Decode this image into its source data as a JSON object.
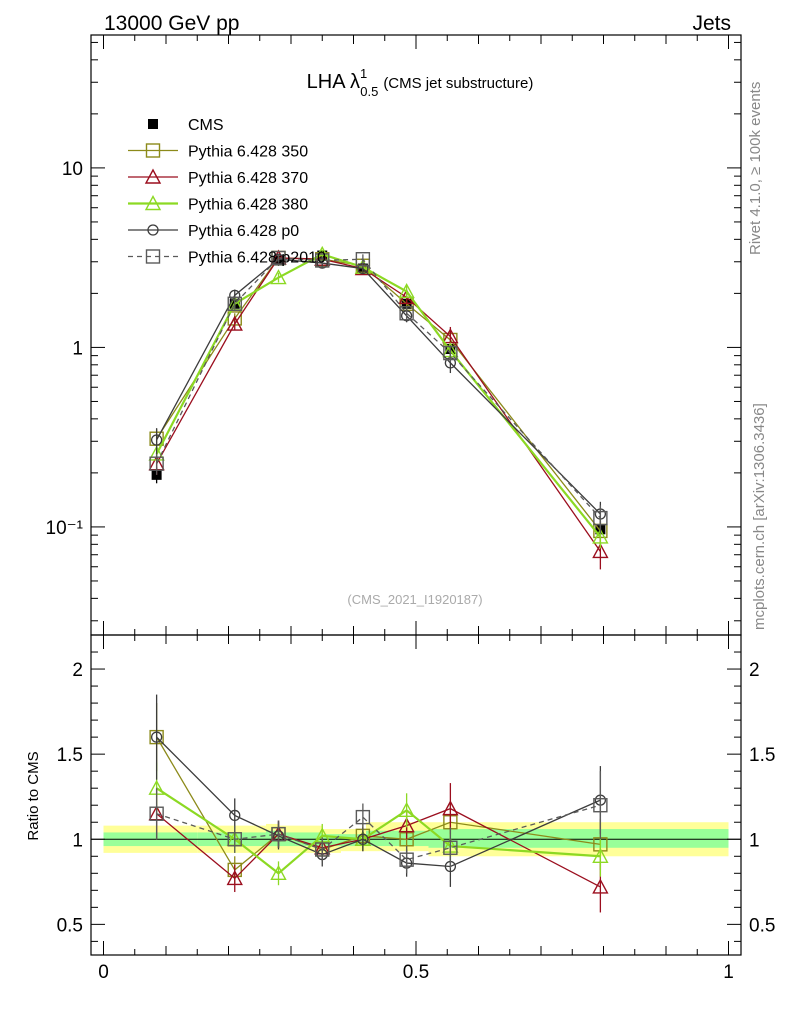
{
  "header": {
    "left": "13000 GeV pp",
    "right": "Jets"
  },
  "side_labels": {
    "top": "Rivet 4.1.0, ≥ 100k events",
    "bottom": "mcplots.cern.ch [arXiv:1306.3436]"
  },
  "title": {
    "main": "LHA λ",
    "sup": "1",
    "sub": "0.5",
    "suffix": "(CMS jet substructure)"
  },
  "watermark": "(CMS_2021_I1920187)",
  "colors": {
    "cms": "#000000",
    "p350": "#8c8a1a",
    "p370": "#9b0e1e",
    "p380": "#8cd923",
    "p0": "#3c3c3c",
    "p2010": "#5a5a5a",
    "band_outer": "#ffff99",
    "band_inner": "#99ff99"
  },
  "chart_data": [
    {
      "type": "line",
      "name": "main",
      "yscale": "log",
      "xlim": [
        -0.02,
        1.02
      ],
      "ylim": [
        0.025,
        55
      ],
      "y_tick_labels": [
        "10",
        "1",
        "10⁻¹"
      ],
      "y_tick_values": [
        10,
        1,
        0.1
      ],
      "x": [
        0.085,
        0.21,
        0.28,
        0.35,
        0.415,
        0.485,
        0.555,
        0.795
      ],
      "series": [
        {
          "name": "CMS",
          "key": "cms",
          "marker": "filled-square",
          "style": "none",
          "values": [
            0.195,
            1.75,
            3.05,
            3.25,
            2.75,
            1.75,
            0.98,
            0.097
          ],
          "errors": [
            0.02,
            0.15,
            0.2,
            0.2,
            0.2,
            0.15,
            0.1,
            0.01
          ]
        },
        {
          "name": "Pythia 6.428 350",
          "key": "p350",
          "marker": "open-square",
          "style": "solid",
          "values": [
            0.31,
            1.45,
            3.15,
            3.1,
            2.85,
            1.75,
            1.1,
            0.095
          ],
          "errors": [
            0.04,
            0.1,
            0.15,
            0.15,
            0.15,
            0.12,
            0.1,
            0.015
          ]
        },
        {
          "name": "Pythia 6.428 370",
          "key": "p370",
          "marker": "open-triangle",
          "style": "solid",
          "values": [
            0.225,
            1.35,
            3.15,
            3.1,
            2.75,
            1.9,
            1.15,
            0.073
          ],
          "errors": [
            0.03,
            0.1,
            0.15,
            0.15,
            0.15,
            0.15,
            0.15,
            0.015
          ]
        },
        {
          "name": "Pythia 6.428 380",
          "key": "p380",
          "marker": "open-triangle",
          "style": "solid",
          "values": [
            0.255,
            1.75,
            2.45,
            3.3,
            2.8,
            2.05,
            0.96,
            0.088
          ],
          "errors": [
            0.03,
            0.12,
            0.15,
            0.2,
            0.15,
            0.15,
            0.1,
            0.012
          ]
        },
        {
          "name": "Pythia 6.428 p0",
          "key": "p0",
          "marker": "open-circle",
          "style": "solid",
          "values": [
            0.305,
            1.95,
            3.1,
            2.95,
            2.75,
            1.5,
            0.82,
            0.118
          ],
          "errors": [
            0.05,
            0.15,
            0.2,
            0.2,
            0.15,
            0.12,
            0.1,
            0.02
          ]
        },
        {
          "name": "Pythia 6.428 p2010",
          "key": "p2010",
          "marker": "open-square",
          "style": "dashed",
          "values": [
            0.225,
            1.75,
            3.15,
            3.05,
            3.1,
            1.55,
            0.93,
            0.112
          ],
          "errors": [
            0.03,
            0.12,
            0.15,
            0.15,
            0.2,
            0.12,
            0.1,
            0.02
          ]
        }
      ]
    },
    {
      "type": "line",
      "name": "ratio",
      "yscale": "linear",
      "ylabel": "Ratio to CMS",
      "xlim": [
        -0.02,
        1.02
      ],
      "ylim": [
        0.32,
        2.2
      ],
      "x_tick_labels": [
        "0",
        "0.5",
        "1"
      ],
      "x_tick_values": [
        0,
        0.5,
        1
      ],
      "y_tick_labels": [
        "2",
        "1.5",
        "1",
        "0.5"
      ],
      "y_tick_values": [
        2.0,
        1.5,
        1.0,
        0.5
      ],
      "reference": 1.0,
      "band_edges": [
        0,
        0.15,
        0.26,
        0.28,
        0.35,
        0.38,
        0.42,
        0.52,
        1.0
      ],
      "band_outer": [
        [
          0.92,
          1.08
        ],
        [
          0.92,
          1.08
        ],
        [
          0.92,
          1.09
        ],
        [
          0.92,
          1.08
        ],
        [
          0.92,
          1.06
        ],
        [
          0.93,
          1.06
        ],
        [
          0.93,
          1.1
        ],
        [
          0.9,
          1.1
        ]
      ],
      "band_inner": [
        [
          0.96,
          1.04
        ],
        [
          0.96,
          1.04
        ],
        [
          0.96,
          1.05
        ],
        [
          0.96,
          1.04
        ],
        [
          0.96,
          1.03
        ],
        [
          0.96,
          1.03
        ],
        [
          0.96,
          1.05
        ],
        [
          0.95,
          1.06
        ]
      ],
      "x": [
        0.085,
        0.21,
        0.28,
        0.35,
        0.415,
        0.485,
        0.555,
        0.795
      ],
      "series": [
        {
          "name": "Pythia 6.428 350",
          "key": "p350",
          "marker": "open-square",
          "style": "solid",
          "values": [
            1.6,
            0.82,
            1.03,
            0.94,
            1.02,
            1.0,
            1.1,
            0.97
          ],
          "errors": [
            0.2,
            0.08,
            0.08,
            0.07,
            0.07,
            0.08,
            0.12,
            0.15
          ]
        },
        {
          "name": "Pythia 6.428 370",
          "key": "p370",
          "marker": "open-triangle",
          "style": "solid",
          "values": [
            1.15,
            0.77,
            1.03,
            0.95,
            1.0,
            1.08,
            1.18,
            0.72
          ],
          "errors": [
            0.15,
            0.08,
            0.08,
            0.07,
            0.07,
            0.08,
            0.15,
            0.15
          ]
        },
        {
          "name": "Pythia 6.428 380",
          "key": "p380",
          "marker": "open-triangle",
          "style": "solid",
          "values": [
            1.3,
            1.0,
            0.8,
            1.02,
            1.0,
            1.17,
            0.96,
            0.9
          ],
          "errors": [
            0.15,
            0.08,
            0.07,
            0.07,
            0.07,
            0.1,
            0.1,
            0.12
          ]
        },
        {
          "name": "Pythia 6.428 p0",
          "key": "p0",
          "marker": "open-circle",
          "style": "solid",
          "values": [
            1.6,
            1.14,
            1.02,
            0.91,
            1.0,
            0.86,
            0.84,
            1.23
          ],
          "errors": [
            0.25,
            0.1,
            0.08,
            0.07,
            0.07,
            0.08,
            0.12,
            0.2
          ]
        },
        {
          "name": "Pythia 6.428 p2010",
          "key": "p2010",
          "marker": "open-square",
          "style": "dashed",
          "values": [
            1.15,
            1.0,
            1.03,
            0.94,
            1.13,
            0.88,
            0.95,
            1.2
          ],
          "errors": [
            0.15,
            0.08,
            0.08,
            0.07,
            0.08,
            0.08,
            0.12,
            0.2
          ]
        }
      ]
    }
  ]
}
